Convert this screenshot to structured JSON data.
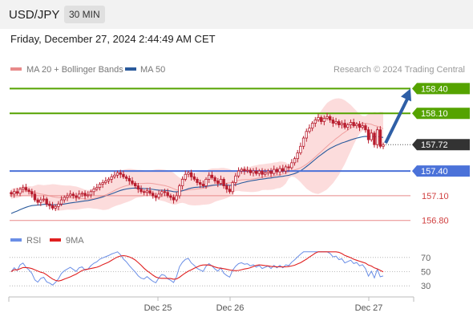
{
  "header": {
    "symbol": "USD/JPY",
    "timeframe": "30 MIN",
    "datetime": "Friday, December 27, 2024 2:44:49 AM CET"
  },
  "credit": "Research © 2024 Trading Central",
  "colors": {
    "green": "#55a300",
    "blue": "#4b72d9",
    "red": "#e88a8a",
    "candle": "#b81d2e",
    "ma50": "#2a5a9c",
    "band": "#fbd6d6",
    "rsi": "#6a8ee6",
    "rsi_ma": "#e02020",
    "arrow": "#2f5fa6",
    "current": "#333333"
  },
  "chart_data": [
    {
      "type": "candlestick",
      "legend": [
        "MA 20 + Bollinger Bands",
        "MA 50"
      ],
      "x_ticks": [
        "Dec 25",
        "Dec 26",
        "Dec 27"
      ],
      "ylim": [
        156.7,
        158.55
      ],
      "levels": [
        {
          "label": "158.40",
          "value": 158.4,
          "kind": "resistance",
          "color": "green"
        },
        {
          "label": "158.10",
          "value": 158.1,
          "kind": "resistance",
          "color": "green"
        },
        {
          "label": "157.72",
          "value": 157.72,
          "kind": "current",
          "color": "current"
        },
        {
          "label": "157.40",
          "value": 157.4,
          "kind": "pivot",
          "color": "blue"
        },
        {
          "label": "157.10",
          "value": 157.1,
          "kind": "support",
          "color": "red"
        },
        {
          "label": "156.80",
          "value": 156.8,
          "kind": "support",
          "color": "red"
        }
      ],
      "arrow": {
        "from": 157.72,
        "to": 158.4
      },
      "candles_note": "closes estimated per bar, left to right",
      "closes": [
        157.12,
        157.15,
        157.13,
        157.18,
        157.2,
        157.17,
        157.15,
        157.12,
        157.05,
        157.02,
        157.05,
        157.06,
        157.0,
        156.98,
        156.95,
        156.97,
        157.0,
        157.05,
        157.08,
        157.1,
        157.12,
        157.1,
        157.08,
        157.12,
        157.13,
        157.1,
        157.11,
        157.15,
        157.18,
        157.2,
        157.24,
        157.26,
        157.28,
        157.3,
        157.33,
        157.35,
        157.38,
        157.36,
        157.33,
        157.31,
        157.28,
        157.25,
        157.22,
        157.18,
        157.15,
        157.14,
        157.16,
        157.13,
        157.1,
        157.08,
        157.12,
        157.15,
        157.14,
        157.1,
        157.08,
        157.05,
        157.1,
        157.22,
        157.3,
        157.36,
        157.38,
        157.33,
        157.3,
        157.26,
        157.24,
        157.22,
        157.3,
        157.35,
        157.32,
        157.28,
        157.25,
        157.3,
        157.22,
        157.18,
        157.15,
        157.26,
        157.34,
        157.4,
        157.42,
        157.4,
        157.41,
        157.38,
        157.4,
        157.37,
        157.4,
        157.36,
        157.38,
        157.4,
        157.37,
        157.42,
        157.39,
        157.43,
        157.4,
        157.45,
        157.44,
        157.5,
        157.55,
        157.62,
        157.7,
        157.8,
        157.88,
        157.92,
        157.98,
        158.02,
        158.05,
        158.0,
        158.04,
        158.06,
        158.02,
        157.98,
        158.0,
        157.96,
        157.98,
        157.93,
        157.96,
        157.99,
        157.95,
        157.97,
        157.93,
        157.95,
        157.9,
        157.78,
        157.86,
        157.72,
        157.9,
        157.7,
        157.72
      ]
    },
    {
      "type": "line",
      "legend": [
        "RSI",
        "9MA"
      ],
      "y_ticks": [
        70,
        50,
        30
      ],
      "ylim": [
        20,
        80
      ]
    }
  ]
}
